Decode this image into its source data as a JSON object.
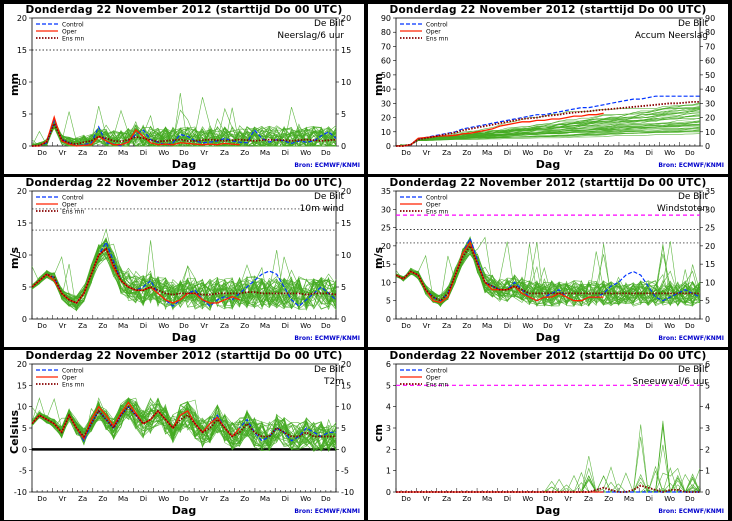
{
  "header": "Donderdag 22 November  2012  (starttijd  Do 00 UTC)",
  "location": "De Bilt",
  "source": "Bron: ECMWF/KNMI",
  "xlabel": "Dag",
  "legend": [
    "Control",
    "Oper",
    "Ens mn"
  ],
  "colors": {
    "control": "#0033ff",
    "oper": "#ff2200",
    "ensmean": "#880000",
    "members": "#44aa22",
    "hline": "#000000",
    "snowline": "#ff00ff"
  },
  "days": [
    "Do",
    "Vr",
    "Za",
    "Zo",
    "Ma",
    "Di",
    "Wo",
    "Do",
    "Vr",
    "Za",
    "Zo",
    "Ma",
    "Di",
    "Wo",
    "Do"
  ],
  "panels": [
    {
      "id": "neerslag",
      "title": "Donderdag 22 November  2012  (starttijd  Do 00 UTC)",
      "var": "Neerslag/6 uur",
      "unit": "mm",
      "show_legend": true,
      "chart_data": {
        "type": "line",
        "xlabel": "Dag",
        "ylabel": "mm",
        "ylim": [
          0,
          20
        ],
        "yticks": [
          0,
          5,
          10,
          15,
          20
        ],
        "hlines": [
          15
        ],
        "control": [
          0,
          0,
          0.5,
          4,
          1,
          0.5,
          0,
          0.2,
          0.5,
          3,
          0.5,
          0.3,
          0,
          0.8,
          1.8,
          2.5,
          1,
          0.6,
          0.2,
          0.5,
          1.8,
          1.5,
          0.8,
          0.5,
          0.6,
          0.8,
          1.2,
          0.8,
          0.6,
          0.5,
          2.5,
          1.2,
          0.6,
          1,
          0.8,
          0.4,
          0.8,
          0.6,
          0.8,
          1.6,
          2.2,
          1.2
        ],
        "oper": [
          0,
          0,
          0.8,
          4.5,
          0.8,
          0.3,
          0,
          0.1,
          0.2,
          1.5,
          0.8,
          0.2,
          0.2,
          0.6,
          2.5,
          1.5,
          0.5,
          0.2,
          0.3,
          0.2,
          0.5,
          0.4,
          0.3,
          0.2,
          0.3,
          0.2,
          0.4,
          0.3,
          0.2
        ],
        "ensmean": [
          0,
          0.1,
          0.6,
          3.5,
          1,
          0.5,
          0.3,
          0.6,
          0.8,
          1.5,
          1.2,
          0.8,
          0.7,
          1,
          1.4,
          1.2,
          0.9,
          0.7,
          0.8,
          0.9,
          1,
          0.8,
          0.8,
          0.9,
          1,
          0.9,
          0.8,
          0.9,
          1,
          0.9,
          0.8,
          0.9,
          1,
          0.9,
          0.9,
          0.8,
          0.9,
          1,
          0.9,
          0.8,
          0.9,
          1
        ],
        "members_mean": 1,
        "members_spread": 2.2,
        "members_max": 12
      }
    },
    {
      "id": "accum",
      "title": "Donderdag 22 November  2012  (starttijd  Do 00 UTC)",
      "var": "Accum Neerslag",
      "unit": "mm",
      "show_legend": true,
      "chart_data": {
        "type": "line",
        "xlabel": "Dag",
        "ylabel": "mm",
        "ylim": [
          0,
          90
        ],
        "yticks": [
          0,
          10,
          20,
          30,
          40,
          50,
          60,
          70,
          80,
          90
        ],
        "hlines": [],
        "control": [
          0,
          0,
          1,
          5,
          6,
          7,
          8,
          9,
          10,
          12,
          13,
          14,
          15,
          16,
          17,
          18,
          19,
          20,
          21,
          22,
          22,
          23,
          24,
          25,
          26,
          27,
          27,
          28,
          29,
          30,
          31,
          32,
          33,
          33,
          34,
          35,
          35,
          35,
          35,
          35,
          35,
          35
        ],
        "oper": [
          0,
          0,
          1,
          5.5,
          6,
          6.5,
          7,
          7.2,
          7.5,
          8.5,
          9,
          10,
          11,
          12,
          14,
          15,
          16,
          17,
          17,
          18,
          18,
          19,
          19,
          20,
          21,
          21,
          22,
          22,
          23
        ],
        "ensmean": [
          0,
          0,
          1,
          4.5,
          5.5,
          6.5,
          7.5,
          8.5,
          9.5,
          11,
          12,
          13,
          14,
          15,
          16,
          17,
          18,
          19,
          19.5,
          20,
          21,
          21.5,
          22,
          23,
          23.5,
          24,
          24.5,
          25,
          25.5,
          26,
          26.5,
          27,
          27.5,
          28,
          28.5,
          29,
          29.5,
          30,
          30,
          30.5,
          31,
          31
        ],
        "members_mean": 1,
        "members_spread": 2.2,
        "members_max": 68,
        "cumulative": true
      }
    },
    {
      "id": "wind",
      "title": "Donderdag 22 November  2012  (starttijd  Do 00 UTC)",
      "var": "10m wind",
      "unit": "m/s",
      "show_legend": true,
      "chart_data": {
        "type": "line",
        "xlabel": "Dag",
        "ylabel": "m/s",
        "ylim": [
          0,
          20
        ],
        "yticks": [
          0,
          5,
          10,
          15,
          20
        ],
        "hlines": [
          13.9,
          17.2
        ],
        "control": [
          5,
          6,
          7,
          6.5,
          4,
          3,
          2.5,
          4,
          7,
          10,
          12,
          9,
          6,
          5,
          4.5,
          5,
          6,
          4,
          3,
          2,
          3,
          4,
          4.5,
          3,
          2,
          3,
          3.5,
          3,
          4,
          5,
          6,
          7,
          7.5,
          7,
          5,
          3,
          2,
          3,
          4,
          5,
          4,
          3
        ],
        "oper": [
          5,
          6,
          7,
          6,
          4,
          3,
          2.5,
          4,
          7,
          10,
          11,
          8,
          6,
          5,
          4.5,
          4.5,
          5,
          4,
          3,
          2.5,
          3,
          4,
          4,
          3,
          2.5,
          2.5,
          3,
          3.5,
          3
        ],
        "ensmean": [
          5,
          6,
          7,
          6.5,
          4,
          3,
          2.5,
          4,
          7,
          10,
          11,
          8.5,
          6,
          5,
          4.5,
          4.5,
          5,
          4.5,
          4,
          3.8,
          4,
          4,
          4,
          3.8,
          3.8,
          4,
          4,
          4,
          4,
          4.2,
          4.2,
          4,
          4,
          4,
          4,
          4,
          4,
          3.8,
          4,
          4,
          4,
          3.8
        ],
        "members_mean": 4,
        "members_spread": 2.5,
        "members_max": 14
      }
    },
    {
      "id": "windstoten",
      "title": "Donderdag 22 November  2012  (starttijd  Do 00 UTC)",
      "var": "Windstoten",
      "unit": "m/s",
      "show_legend": true,
      "chart_data": {
        "type": "line",
        "xlabel": "Dag",
        "ylabel": "m/s",
        "ylim": [
          0,
          35
        ],
        "yticks": [
          0,
          5,
          10,
          15,
          20,
          25,
          30,
          35
        ],
        "hlines": [
          20.8,
          24.5
        ],
        "special_hline": 28.4,
        "control": [
          12,
          11,
          13,
          12,
          8,
          6,
          5,
          7,
          12,
          18,
          22,
          16,
          10,
          9,
          8,
          8,
          10,
          8,
          6,
          5,
          6,
          7,
          8,
          6,
          5,
          5,
          6,
          6,
          7,
          9,
          10,
          12,
          13,
          12,
          9,
          6,
          5,
          6,
          7,
          8,
          7,
          6
        ],
        "oper": [
          12,
          11,
          13,
          12,
          8,
          5,
          4.5,
          6,
          12,
          18,
          21,
          15,
          10,
          8,
          8,
          8,
          9,
          7,
          6,
          5,
          6,
          6,
          7,
          6,
          5,
          5,
          6,
          6,
          6
        ],
        "ensmean": [
          12,
          11,
          13,
          12,
          8,
          6,
          5,
          7,
          12,
          17,
          20,
          15,
          10,
          9,
          8,
          8,
          9,
          8,
          7,
          7,
          7,
          7,
          7,
          7,
          7,
          7,
          7,
          7,
          7,
          7,
          7,
          7,
          7,
          7,
          7,
          7,
          7,
          7,
          7,
          7,
          7,
          7
        ],
        "members_mean": 7,
        "members_spread": 3.5,
        "members_max": 27
      }
    },
    {
      "id": "t2m",
      "title": "Donderdag 22 November  2012  (starttijd  Do 00 UTC)",
      "var": "T2m",
      "unit": "Celsius",
      "show_legend": true,
      "chart_data": {
        "type": "line",
        "xlabel": "Dag",
        "ylabel": "Celsius",
        "ylim": [
          -10,
          20
        ],
        "yticks": [
          -10,
          -5,
          0,
          5,
          10,
          15,
          20
        ],
        "hlines": [
          0
        ],
        "control": [
          6,
          8,
          7,
          6,
          4,
          8,
          5,
          2,
          6,
          9,
          7,
          5,
          8,
          10,
          8,
          6,
          7,
          9,
          7,
          5,
          8,
          9,
          6,
          4,
          6,
          8,
          5,
          3,
          5,
          7,
          4,
          2,
          3,
          5,
          4,
          2,
          3,
          5,
          4,
          3,
          4,
          4
        ],
        "oper": [
          6,
          8,
          7,
          6,
          4,
          8,
          5,
          2.5,
          7,
          10,
          8,
          5.5,
          8.5,
          11,
          8.5,
          6,
          7,
          9,
          7,
          5,
          8,
          9,
          6,
          4,
          6,
          7.5,
          5,
          3,
          5
        ],
        "ensmean": [
          6,
          8,
          7,
          6,
          4,
          8,
          5,
          3,
          6,
          9,
          7,
          5,
          8,
          10,
          8,
          6,
          7,
          9,
          7,
          5,
          7,
          8,
          6,
          4,
          5,
          7,
          5,
          3,
          4,
          6,
          4,
          3,
          3,
          5,
          4,
          3,
          3,
          4,
          3,
          3,
          3,
          3
        ],
        "members_mean": 4,
        "members_spread": 3.5,
        "members_max": 12
      }
    },
    {
      "id": "sneeuw",
      "title": "Donderdag 22 November  2012  (starttijd  Do 00 UTC)",
      "var": "Sneeuwval/6 uur",
      "unit": "cm",
      "show_legend": true,
      "chart_data": {
        "type": "line",
        "xlabel": "Dag",
        "ylabel": "cm",
        "ylim": [
          0,
          6
        ],
        "yticks": [
          0,
          1,
          2,
          3,
          4,
          5,
          6
        ],
        "hlines": [],
        "special_hline": 5,
        "control": [
          0,
          0,
          0,
          0,
          0,
          0,
          0,
          0,
          0,
          0,
          0,
          0,
          0,
          0,
          0,
          0,
          0,
          0,
          0,
          0,
          0,
          0,
          0,
          0,
          0,
          0,
          0,
          0,
          0,
          0,
          0,
          0,
          0,
          0,
          0,
          0,
          0,
          0,
          0,
          0,
          0,
          0
        ],
        "oper": [
          0,
          0,
          0,
          0,
          0,
          0,
          0,
          0,
          0,
          0,
          0,
          0,
          0,
          0,
          0,
          0,
          0,
          0,
          0,
          0,
          0,
          0,
          0,
          0,
          0,
          0,
          0,
          0,
          0
        ],
        "ensmean": [
          0,
          0,
          0,
          0,
          0,
          0,
          0,
          0,
          0,
          0,
          0,
          0,
          0,
          0,
          0,
          0,
          0,
          0,
          0,
          0,
          0,
          0,
          0,
          0,
          0,
          0,
          0,
          0.1,
          0.2,
          0.1,
          0,
          0,
          0.1,
          0.3,
          0.2,
          0.1,
          0,
          0.1,
          0.1,
          0,
          0,
          0
        ],
        "members_mean": 0,
        "members_spread": 0.3,
        "members_max": 4.5,
        "spikes": [
          [
            26,
            2
          ],
          [
            33,
            4.5
          ],
          [
            36,
            4.3
          ],
          [
            38,
            2.5
          ],
          [
            40,
            0.8
          ]
        ]
      }
    }
  ]
}
